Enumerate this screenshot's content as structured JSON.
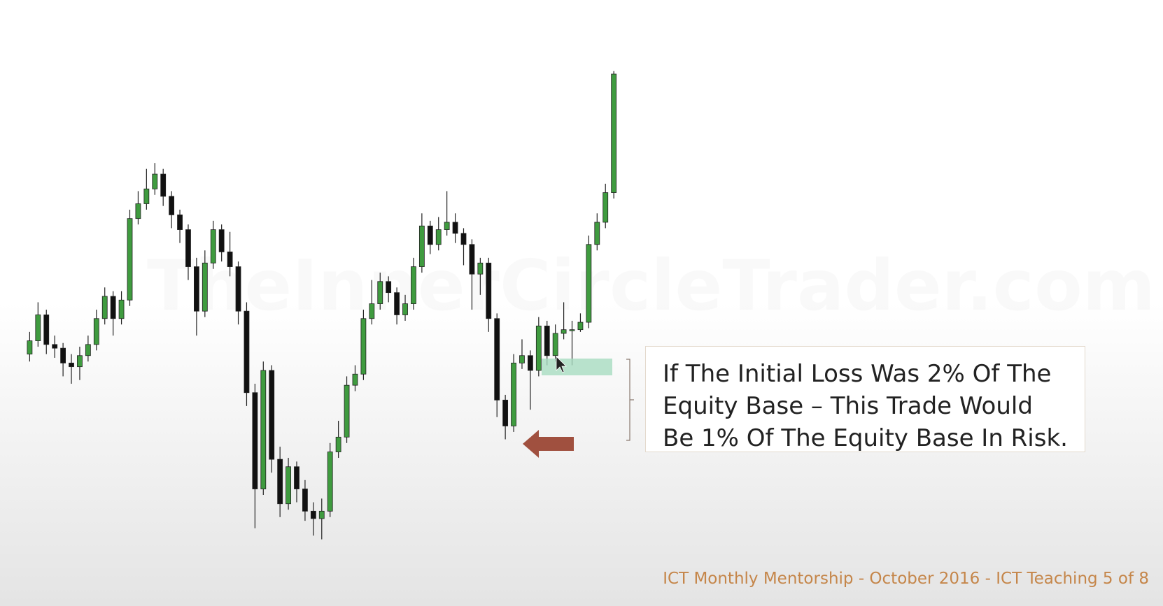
{
  "chart_data": {
    "type": "candlestick",
    "watermark": "TheInnerCircleTrader.com",
    "annotation": "If The Initial Loss Was 2% Of The Equity Base – This Trade Would Be 1% Of The Equity Base In Risk.",
    "footer": "ICT Monthly Mentorship - October 2016 - ICT Teaching 5 of 8",
    "ylim": [
      0,
      818
    ],
    "up_color": "#3f9b3f",
    "down_color": "#111111",
    "open": [
      340,
      358,
      393,
      353,
      348,
      328,
      323,
      338,
      353,
      388,
      418,
      388,
      413,
      523,
      543,
      563,
      583,
      553,
      528,
      508,
      458,
      398,
      463,
      508,
      478,
      458,
      398,
      288,
      158,
      318,
      198,
      138,
      188,
      158,
      128,
      118,
      128,
      208,
      228,
      298,
      313,
      388,
      408,
      438,
      423,
      393,
      408,
      458,
      513,
      488,
      508,
      518,
      503,
      488,
      448,
      463,
      388,
      278,
      243,
      328,
      338,
      318,
      378,
      338,
      368,
      373,
      373,
      383,
      488,
      518,
      558
    ],
    "high": [
      370,
      410,
      400,
      365,
      355,
      340,
      350,
      365,
      400,
      430,
      425,
      425,
      535,
      560,
      590,
      598,
      590,
      560,
      535,
      515,
      470,
      480,
      520,
      515,
      505,
      465,
      410,
      300,
      330,
      325,
      215,
      200,
      195,
      170,
      140,
      145,
      220,
      250,
      310,
      325,
      400,
      440,
      450,
      445,
      430,
      420,
      470,
      530,
      520,
      525,
      560,
      530,
      510,
      495,
      470,
      470,
      395,
      285,
      340,
      360,
      345,
      390,
      385,
      380,
      410,
      385,
      395,
      500,
      530,
      570,
      722
    ],
    "low": [
      330,
      350,
      340,
      335,
      310,
      300,
      305,
      330,
      345,
      380,
      365,
      380,
      405,
      515,
      535,
      555,
      540,
      510,
      490,
      440,
      365,
      390,
      455,
      465,
      445,
      380,
      270,
      105,
      150,
      180,
      120,
      130,
      140,
      115,
      95,
      90,
      120,
      200,
      220,
      290,
      305,
      380,
      400,
      410,
      380,
      385,
      400,
      450,
      475,
      480,
      500,
      490,
      460,
      400,
      420,
      370,
      255,
      225,
      235,
      320,
      265,
      310,
      325,
      330,
      360,
      325,
      370,
      375,
      480,
      510,
      550
    ],
    "close": [
      358,
      393,
      353,
      348,
      328,
      323,
      338,
      353,
      388,
      418,
      388,
      413,
      523,
      543,
      563,
      583,
      553,
      528,
      508,
      458,
      398,
      463,
      508,
      478,
      458,
      398,
      288,
      158,
      318,
      198,
      138,
      188,
      158,
      128,
      118,
      128,
      208,
      228,
      298,
      313,
      388,
      408,
      438,
      423,
      393,
      408,
      458,
      513,
      488,
      508,
      518,
      503,
      488,
      448,
      463,
      388,
      278,
      243,
      328,
      338,
      318,
      378,
      338,
      368,
      373,
      373,
      383,
      488,
      518,
      558,
      718
    ]
  }
}
